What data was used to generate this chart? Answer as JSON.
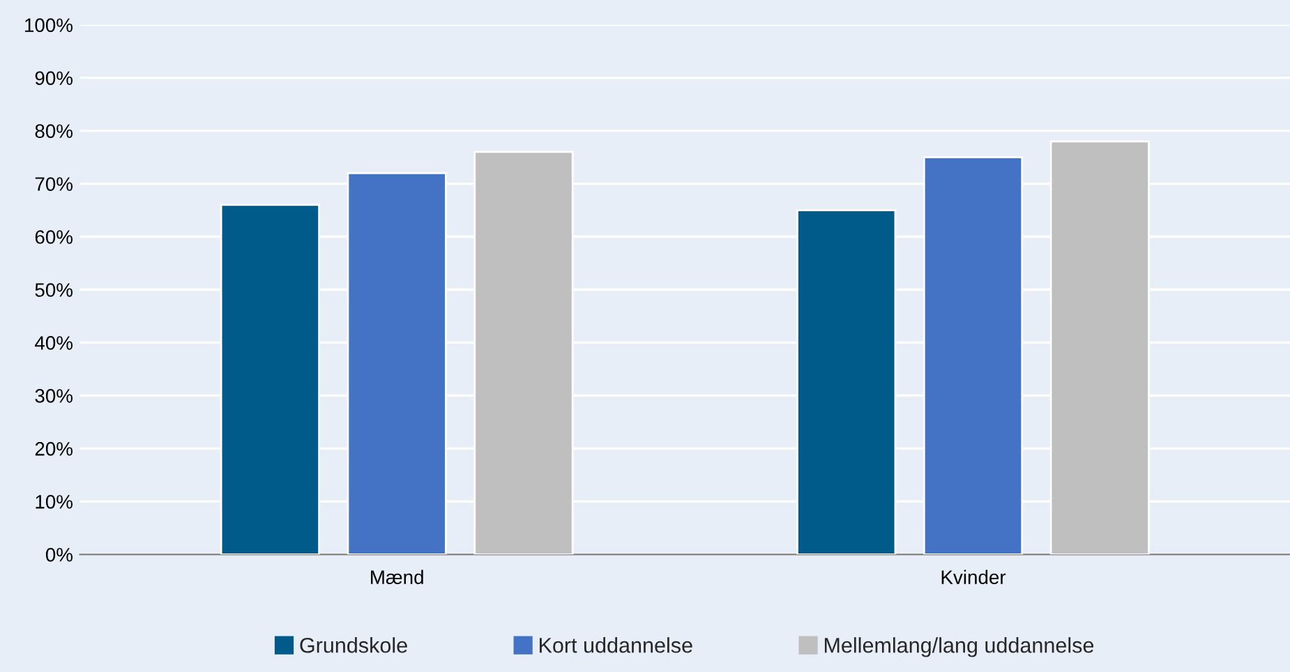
{
  "chart_data": {
    "type": "bar",
    "categories": [
      "Mænd",
      "Kvinder"
    ],
    "series": [
      {
        "name": "Grundskole",
        "color": "#005a8a",
        "values": [
          66,
          65
        ]
      },
      {
        "name": "Kort uddannelse",
        "color": "#4472c4",
        "values": [
          72,
          75
        ]
      },
      {
        "name": "Mellemlang/lang uddannelse",
        "color": "#bfbfbf",
        "values": [
          76,
          78
        ]
      }
    ],
    "ylim": [
      0,
      100
    ],
    "yticks": [
      {
        "value": 0,
        "label": "0%"
      },
      {
        "value": 10,
        "label": "10%"
      },
      {
        "value": 20,
        "label": "20%"
      },
      {
        "value": 30,
        "label": "30%"
      },
      {
        "value": 40,
        "label": "40%"
      },
      {
        "value": 50,
        "label": "50%"
      },
      {
        "value": 60,
        "label": "60%"
      },
      {
        "value": 70,
        "label": "70%"
      },
      {
        "value": 80,
        "label": "80%"
      },
      {
        "value": 90,
        "label": "90%"
      },
      {
        "value": 100,
        "label": "100%"
      }
    ],
    "grid": "y",
    "legend": "bottom"
  }
}
